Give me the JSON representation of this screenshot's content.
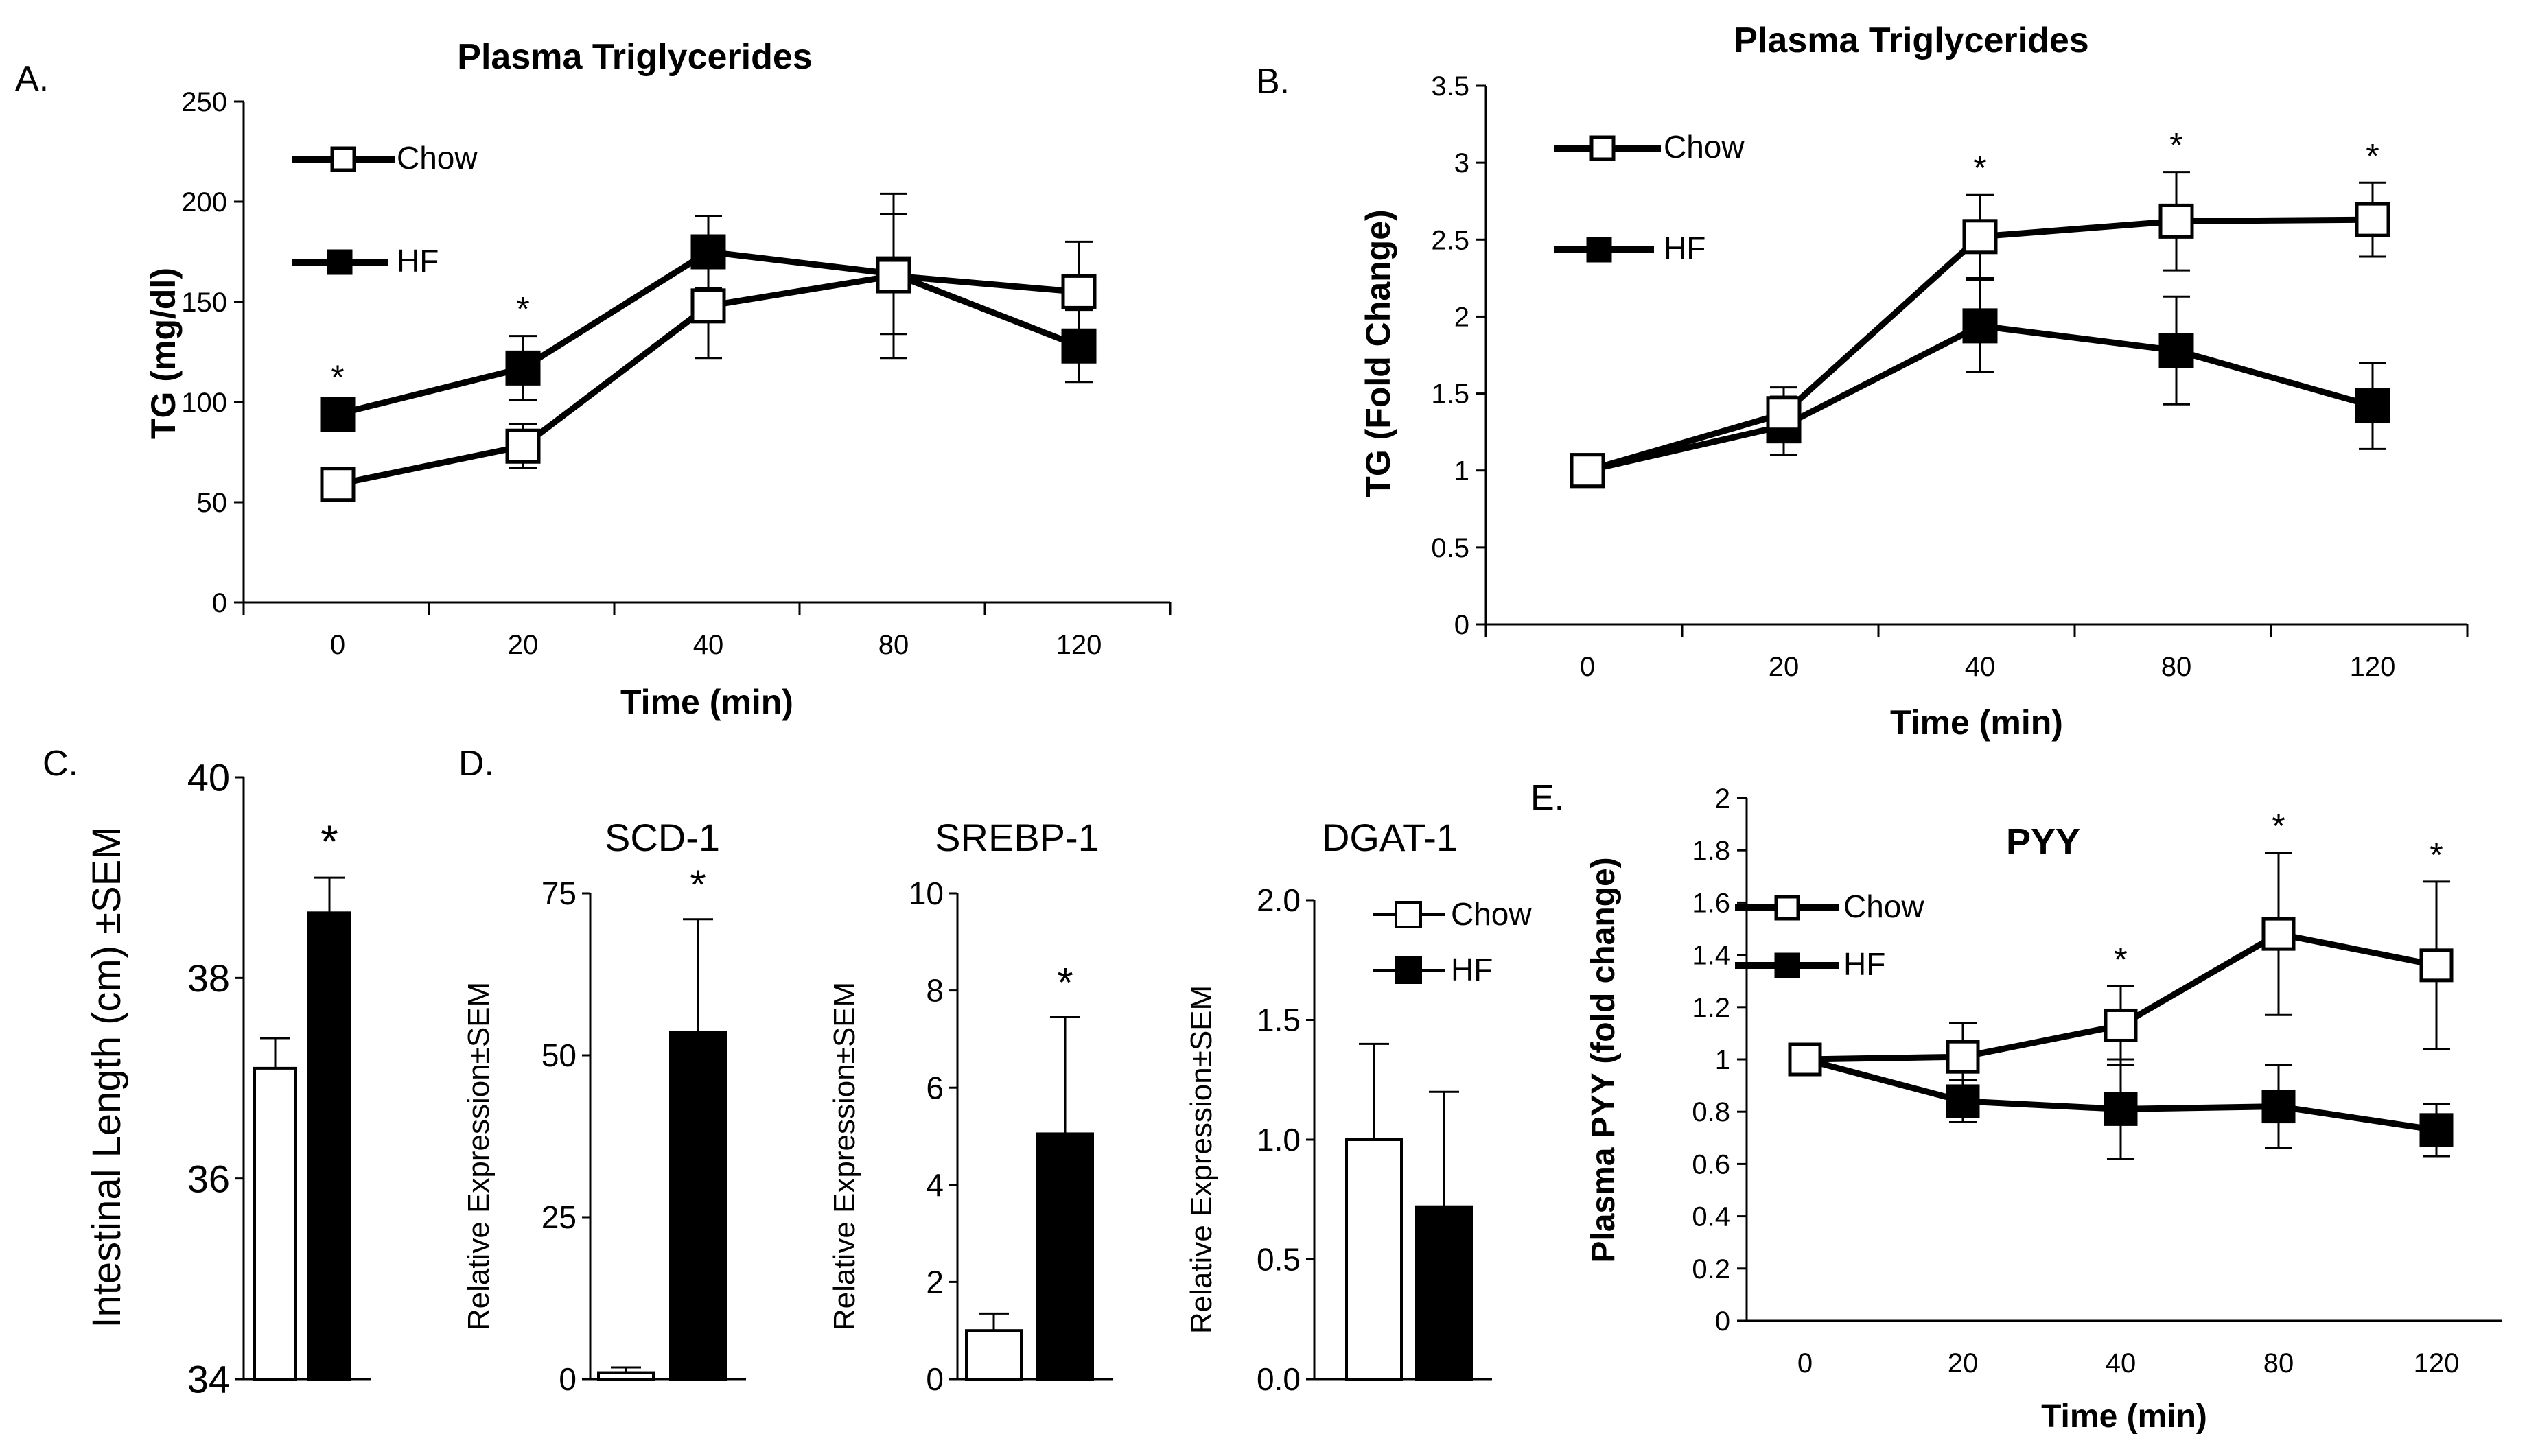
{
  "panel_letters": {
    "a": "A.",
    "b": "B.",
    "c": "C.",
    "d": "D.",
    "e": "E."
  },
  "legend": {
    "chow": "Chow",
    "hf": "HF"
  },
  "colors": {
    "chow_fill": "#ffffff",
    "hf_fill": "#000000",
    "line": "#000000"
  },
  "chart_data": [
    {
      "id": "A",
      "type": "line",
      "title": "Plasma Triglycerides",
      "xlabel": "Time (min)",
      "ylabel": "TG (mg/dl)",
      "categories": [
        "0",
        "20",
        "40",
        "80",
        "120"
      ],
      "ylim": [
        0,
        250
      ],
      "yticks": [
        "0",
        "50",
        "100",
        "150",
        "200",
        "250"
      ],
      "series": [
        {
          "name": "Chow",
          "values": [
            59,
            78,
            148,
            163,
            155
          ],
          "errors": [
            3,
            11,
            26,
            41,
            25
          ]
        },
        {
          "name": "HF",
          "values": [
            94,
            117,
            175,
            164,
            128
          ],
          "errors": [
            5,
            16,
            18,
            30,
            18
          ]
        }
      ],
      "significance": [
        {
          "category": "0",
          "label": "*"
        },
        {
          "category": "20",
          "label": "*"
        }
      ]
    },
    {
      "id": "B",
      "type": "line",
      "title": "Plasma Triglycerides",
      "xlabel": "Time (min)",
      "ylabel": "TG (Fold Change)",
      "categories": [
        "0",
        "20",
        "40",
        "80",
        "120"
      ],
      "ylim": [
        0,
        3.5
      ],
      "yticks": [
        "0",
        "0.5",
        "1",
        "1.5",
        "2",
        "2.5",
        "3",
        "3.5"
      ],
      "series": [
        {
          "name": "Chow",
          "values": [
            1.0,
            1.37,
            2.52,
            2.62,
            2.63
          ],
          "errors": [
            0.02,
            0.17,
            0.27,
            0.32,
            0.24
          ]
        },
        {
          "name": "HF",
          "values": [
            1.0,
            1.29,
            1.94,
            1.78,
            1.42
          ],
          "errors": [
            0.02,
            0.19,
            0.3,
            0.35,
            0.28
          ]
        }
      ],
      "significance": [
        {
          "category": "40",
          "label": "*"
        },
        {
          "category": "80",
          "label": "*"
        },
        {
          "category": "120",
          "label": "*"
        }
      ]
    },
    {
      "id": "C",
      "type": "bar",
      "title": "",
      "xlabel": "",
      "ylabel": "Intestinal Length (cm) ±SEM",
      "categories": [
        "Chow",
        "HF"
      ],
      "ylim": [
        34,
        40
      ],
      "yticks": [
        "34",
        "36",
        "38",
        "40"
      ],
      "values": [
        37.1,
        38.65
      ],
      "errors": [
        0.3,
        0.35
      ],
      "significance": [
        {
          "category": "HF",
          "label": "*"
        }
      ]
    },
    {
      "id": "D1",
      "type": "bar",
      "title": "SCD-1",
      "xlabel": "",
      "ylabel": "Relative Expression±SEM",
      "categories": [
        "Chow",
        "HF"
      ],
      "ylim": [
        0,
        75
      ],
      "yticks": [
        "0",
        "25",
        "50",
        "75"
      ],
      "values": [
        1,
        53.5
      ],
      "errors": [
        0.8,
        17.5
      ],
      "significance": [
        {
          "category": "HF",
          "label": "*"
        }
      ]
    },
    {
      "id": "D2",
      "type": "bar",
      "title": "SREBP-1",
      "xlabel": "",
      "ylabel": "Relative Expression±SEM",
      "categories": [
        "Chow",
        "HF"
      ],
      "ylim": [
        0,
        10
      ],
      "yticks": [
        "0",
        "2",
        "4",
        "6",
        "8",
        "10"
      ],
      "values": [
        1.0,
        5.05
      ],
      "errors": [
        0.35,
        2.4
      ],
      "significance": [
        {
          "category": "HF",
          "label": "*"
        }
      ]
    },
    {
      "id": "D3",
      "type": "bar",
      "title": "DGAT-1",
      "xlabel": "",
      "ylabel": "Relative Expression±SEM",
      "categories": [
        "Chow",
        "HF"
      ],
      "ylim": [
        0,
        2.0
      ],
      "yticks": [
        "0.0",
        "0.5",
        "1.0",
        "1.5",
        "2.0"
      ],
      "values": [
        1.0,
        0.72
      ],
      "errors": [
        0.4,
        0.48
      ],
      "significance": []
    },
    {
      "id": "E",
      "type": "line",
      "title": "PYY",
      "xlabel": "Time (min)",
      "ylabel": "Plasma PYY (fold change)",
      "categories": [
        "0",
        "20",
        "40",
        "80",
        "120"
      ],
      "ylim": [
        0,
        2
      ],
      "yticks": [
        "0",
        "0.2",
        "0.4",
        "0.6",
        "0.8",
        "1",
        "1.2",
        "1.4",
        "1.6",
        "1.8",
        "2"
      ],
      "series": [
        {
          "name": "Chow",
          "values": [
            1.0,
            1.01,
            1.13,
            1.48,
            1.36
          ],
          "errors": [
            0.02,
            0.13,
            0.15,
            0.31,
            0.32
          ]
        },
        {
          "name": "HF",
          "values": [
            1.0,
            0.84,
            0.81,
            0.82,
            0.73
          ],
          "errors": [
            0.02,
            0.08,
            0.19,
            0.16,
            0.1
          ]
        }
      ],
      "significance": [
        {
          "category": "40",
          "label": "*"
        },
        {
          "category": "80",
          "label": "*"
        },
        {
          "category": "120",
          "label": "*"
        }
      ]
    }
  ]
}
